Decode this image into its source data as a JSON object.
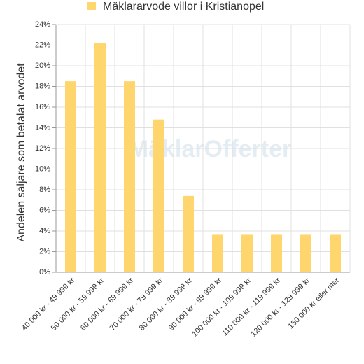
{
  "chart_data": {
    "type": "bar",
    "categories": [
      "40 000 kr - 49 999 kr",
      "50 000 kr - 59 999 kr",
      "60 000 kr - 69 999 kr",
      "70 000 kr - 79 999 kr",
      "80 000 kr - 89 999 kr",
      "90 000 kr - 99 999 kr",
      "100 000 kr - 109 999 kr",
      "110 000 kr - 119 999 kr",
      "120 000 kr - 129 999 kr",
      "150 000 kr eller mer"
    ],
    "series": [
      {
        "name": "Mäklararvode villor i Kristianopel",
        "color": "#ffd66e",
        "values": [
          18.5,
          22.2,
          18.5,
          14.8,
          7.4,
          3.7,
          3.7,
          3.7,
          3.7,
          3.7
        ]
      }
    ],
    "y_label": "Andelen säljare som betalat arvodet",
    "watermark": "MäklarOfferter",
    "ylim": [
      0,
      24
    ],
    "yticks": [
      {
        "value": 0,
        "label": "0%"
      },
      {
        "value": 2,
        "label": "2%"
      },
      {
        "value": 4,
        "label": "4%"
      },
      {
        "value": 6,
        "label": "6%"
      },
      {
        "value": 8,
        "label": "8%"
      },
      {
        "value": 10,
        "label": "10%"
      },
      {
        "value": 12,
        "label": "12%"
      },
      {
        "value": 14,
        "label": "14%"
      },
      {
        "value": 16,
        "label": "16%"
      },
      {
        "value": 18,
        "label": "18%"
      },
      {
        "value": 20,
        "label": "20%"
      },
      {
        "value": 22,
        "label": "22%"
      },
      {
        "value": 24,
        "label": "24%"
      }
    ],
    "grid": true
  }
}
